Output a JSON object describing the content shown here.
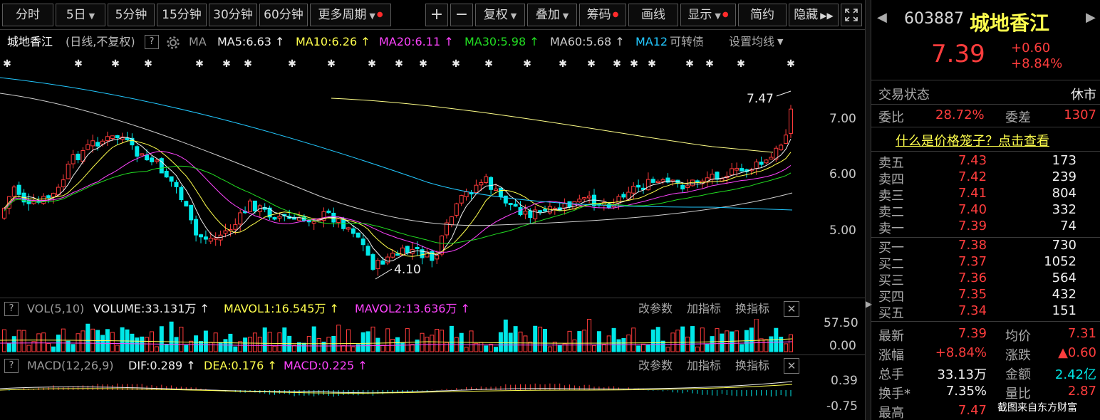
{
  "toolbar": {
    "periods": [
      "分时",
      "5日",
      "5分钟",
      "15分钟",
      "30分钟",
      "60分钟",
      "更多周期"
    ],
    "plus": "+",
    "minus": "−",
    "fuquan": "复权",
    "diejia": "叠加",
    "chouma": "筹码",
    "huaxian": "画线",
    "xianshi": "显示",
    "jianyue": "简约",
    "yincang": "隐藏"
  },
  "kline_info": {
    "name": "城地香江",
    "mode": "(日线,不复权)",
    "help": "?",
    "ma": "MA",
    "ma5": "MA5:6.63",
    "ma10": "MA10:6.26",
    "ma20": "MA20:6.11",
    "ma30": "MA30:5.98",
    "ma60": "MA60:5.68",
    "ma120": "MA12",
    "convertible": "可转债",
    "settings": "设置均线",
    "price_axis": [
      "7.00",
      "6.00",
      "5.00"
    ],
    "high_label": "7.47",
    "low_label": "4.10",
    "markers": [
      "✱✱",
      "✱",
      "✱✱",
      "✱",
      "✱",
      "✱",
      "✱✱",
      "✱✱✱✱",
      "✱✱",
      "✱",
      "✱",
      "✱",
      "✱✱✱",
      "✱",
      "✱✱",
      "✱",
      "✱",
      "✱",
      "✱",
      "✱",
      "✱",
      "✱✱",
      "✱",
      "✱✱",
      "✱",
      "✱",
      "✱"
    ]
  },
  "vol_panel": {
    "help": "?",
    "title": "VOL(5,10)",
    "volume": "VOLUME:33.131万",
    "mavol1": "MAVOL1:16.545万",
    "mavol2": "MAVOL2:13.636万",
    "gai": "改参数",
    "jia": "加指标",
    "huan": "换指标",
    "close": "✕",
    "axis_top": "57.50",
    "axis_bottom": "0.00"
  },
  "macd_panel": {
    "help": "?",
    "title": "MACD(12,26,9)",
    "dif": "DIF:0.289",
    "dea": "DEA:0.176",
    "macd": "MACD:0.225",
    "gai": "改参数",
    "jia": "加指标",
    "huan": "换指标",
    "close": "✕",
    "axis_top": "0.39",
    "axis_bottom": "-0.75"
  },
  "sidebar": {
    "code": "603887",
    "name": "城地香江",
    "price": "7.39",
    "change": "+0.60",
    "change_pct": "+8.84%",
    "status_label": "交易状态",
    "status_value": "休市",
    "weibi_label": "委比",
    "weibi_value": "28.72%",
    "weicha_label": "委差",
    "weicha_value": "1307",
    "cage_link": "什么是价格笼子？点击查看",
    "sells": [
      {
        "label": "卖五",
        "price": "7.43",
        "vol": "173"
      },
      {
        "label": "卖四",
        "price": "7.42",
        "vol": "239"
      },
      {
        "label": "卖三",
        "price": "7.41",
        "vol": "804"
      },
      {
        "label": "卖二",
        "price": "7.40",
        "vol": "332"
      },
      {
        "label": "卖一",
        "price": "7.39",
        "vol": "74"
      }
    ],
    "buys": [
      {
        "label": "买一",
        "price": "7.38",
        "vol": "730"
      },
      {
        "label": "买二",
        "price": "7.37",
        "vol": "1052"
      },
      {
        "label": "买三",
        "price": "7.36",
        "vol": "564"
      },
      {
        "label": "买四",
        "price": "7.35",
        "vol": "432"
      },
      {
        "label": "买五",
        "price": "7.34",
        "vol": "151"
      }
    ],
    "stats": [
      {
        "l1": "最新",
        "v1": "7.39",
        "l2": "均价",
        "v2": "7.31"
      },
      {
        "l1": "涨幅",
        "v1": "+8.84%",
        "l2": "涨跌",
        "v2": "▲0.60"
      },
      {
        "l1": "总手",
        "v1": "33.13万",
        "l2": "金额",
        "v2": "2.42亿"
      },
      {
        "l1": "换手*",
        "v1": "7.35%",
        "l2": "量比",
        "v2": "2.87"
      },
      {
        "l1": "最高",
        "v1": "7.47",
        "l2": "",
        "v2": ""
      }
    ]
  },
  "watermark": "截图来自东方财富"
}
